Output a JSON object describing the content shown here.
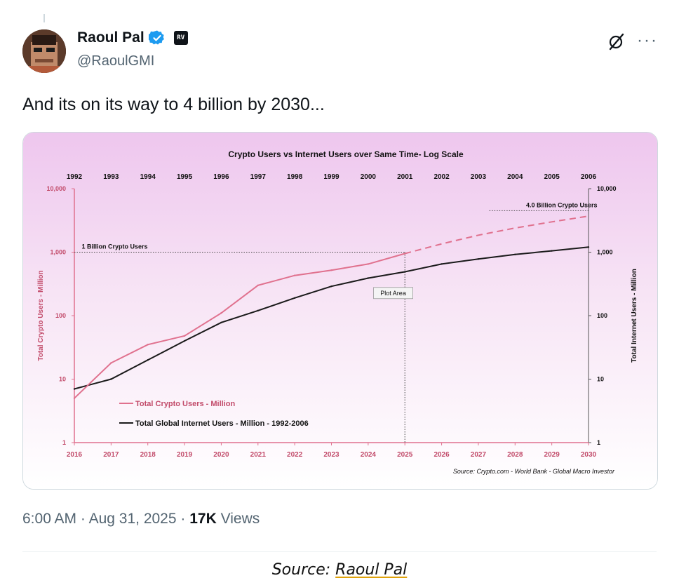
{
  "author": {
    "display_name": "Raoul Pal",
    "handle": "@RaoulGMI",
    "affiliate_badge": "RV",
    "avatar_icon": "pixel-ape-avatar"
  },
  "tweet": {
    "text": "And its on its way to 4 billion by 2030...",
    "time": "6:00 AM",
    "date": "Aug 31, 2025",
    "views_count": "17K",
    "views_label": "Views",
    "sep": "·"
  },
  "caption": {
    "prefix": "Source: ",
    "link_text": "Raoul Pal"
  },
  "colors": {
    "crypto_series": "#e0718e",
    "internet_series": "#1a1a1a",
    "verified": "#1d9bf0",
    "caption_underline": "#e0a20a"
  },
  "chart_data": {
    "type": "line",
    "title": "Crypto Users vs Internet Users over Same Time- Log Scale",
    "x_bottom": [
      "2016",
      "2017",
      "2018",
      "2019",
      "2020",
      "2021",
      "2022",
      "2023",
      "2024",
      "2025",
      "2026",
      "2027",
      "2028",
      "2029",
      "2030"
    ],
    "x_top": [
      "1992",
      "1993",
      "1994",
      "1995",
      "1996",
      "1997",
      "1998",
      "1999",
      "2000",
      "2001",
      "2002",
      "2003",
      "2004",
      "2005",
      "2006"
    ],
    "y_scale": "log",
    "ylim": [
      1,
      10000
    ],
    "y_ticks": [
      "1",
      "10",
      "100",
      "1,000",
      "10,000"
    ],
    "ylabel_left": "Total Crypto Users - Million",
    "ylabel_right": "Total Internet Users - Million",
    "series": [
      {
        "name": "Total Crypto Users - Million",
        "x": [
          2016,
          2017,
          2018,
          2019,
          2020,
          2021,
          2022,
          2023,
          2024,
          2025
        ],
        "values": [
          5,
          18,
          35,
          48,
          110,
          300,
          430,
          520,
          650,
          950
        ],
        "projection_x": [
          2025,
          2026,
          2027,
          2028,
          2029,
          2030
        ],
        "projection_values": [
          950,
          1350,
          1850,
          2400,
          3000,
          3700
        ]
      },
      {
        "name": "Total Global Internet Users - Million - 1992-2006",
        "x": [
          2016,
          2017,
          2018,
          2019,
          2020,
          2021,
          2022,
          2023,
          2024,
          2025,
          2026,
          2027,
          2028,
          2029,
          2030
        ],
        "values": [
          7,
          10,
          20,
          40,
          78,
          120,
          190,
          290,
          390,
          490,
          650,
          780,
          920,
          1050,
          1200
        ]
      }
    ],
    "annotations": [
      {
        "text": "1 Billion Crypto Users",
        "x": 2016.2,
        "y": 1000
      },
      {
        "text": "4.0 Billion Crypto Users",
        "x": 2028.3,
        "y": 4500
      },
      {
        "text": "Plot Area",
        "x": 2024.3,
        "y": 200
      }
    ],
    "reference_lines": {
      "one_billion_y": 1000,
      "four_billion_y": 4500,
      "four_billion_x_start": 2027.3,
      "vertical_x": 2025
    },
    "source": "Source:   Crypto.com - World Bank - Global Macro Investor",
    "legend": "bottom-left",
    "grid": false
  }
}
